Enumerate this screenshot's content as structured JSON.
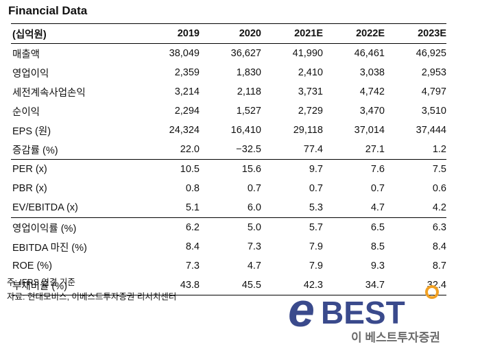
{
  "title": "Financial Data",
  "table": {
    "header": [
      "(십억원)",
      "2019",
      "2020",
      "2021E",
      "2022E",
      "2023E"
    ],
    "groups": [
      [
        {
          "label": "매출액",
          "values": [
            "38,049",
            "36,627",
            "41,990",
            "46,461",
            "46,925"
          ]
        },
        {
          "label": "영업이익",
          "values": [
            "2,359",
            "1,830",
            "2,410",
            "3,038",
            "2,953"
          ]
        },
        {
          "label": "세전계속사업손익",
          "values": [
            "3,214",
            "2,118",
            "3,731",
            "4,742",
            "4,797"
          ]
        },
        {
          "label": "순이익",
          "values": [
            "2,294",
            "1,527",
            "2,729",
            "3,470",
            "3,510"
          ]
        },
        {
          "label": "EPS (원)",
          "values": [
            "24,324",
            "16,410",
            "29,118",
            "37,014",
            "37,444"
          ]
        },
        {
          "label": "증감률 (%)",
          "values": [
            "22.0",
            "−32.5",
            "77.4",
            "27.1",
            "1.2"
          ]
        }
      ],
      [
        {
          "label": "PER (x)",
          "values": [
            "10.5",
            "15.6",
            "9.7",
            "7.6",
            "7.5"
          ]
        },
        {
          "label": "PBR (x)",
          "values": [
            "0.8",
            "0.7",
            "0.7",
            "0.7",
            "0.6"
          ]
        },
        {
          "label": "EV/EBITDA (x)",
          "values": [
            "5.1",
            "6.0",
            "5.3",
            "4.7",
            "4.2"
          ]
        }
      ],
      [
        {
          "label": "영업이익률 (%)",
          "values": [
            "6.2",
            "5.0",
            "5.7",
            "6.5",
            "6.3"
          ]
        },
        {
          "label": "EBITDA 마진 (%)",
          "values": [
            "8.4",
            "7.3",
            "7.9",
            "8.5",
            "8.4"
          ]
        },
        {
          "label": "ROE (%)",
          "values": [
            "7.3",
            "4.7",
            "7.9",
            "9.3",
            "8.7"
          ]
        },
        {
          "label": "부채비율 (%)",
          "values": [
            "43.8",
            "45.5",
            "42.3",
            "34.7",
            "32.4"
          ]
        }
      ]
    ]
  },
  "notes": {
    "note": "주: IFRS 연결 기준",
    "source": "자료: 현대모비스, 이베스트투자증권 리서치센터"
  },
  "logo": {
    "letter": "e",
    "word": "BEST",
    "subtitle": "이 베스트투자증권",
    "brand_color": "#3a4a8c",
    "accent_color": "#f0a023",
    "subtitle_color": "#6b6b6b"
  }
}
